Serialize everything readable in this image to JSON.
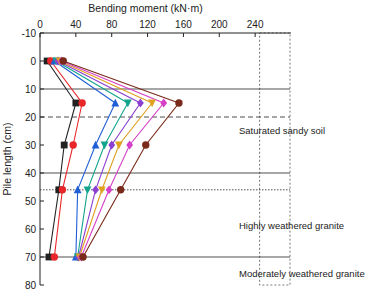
{
  "chart_data": {
    "type": "line",
    "orientation": "horizontal",
    "x_label": "Bending moment (kN·m)",
    "y_label": "Pile length (cm)",
    "xlim": [
      0,
      280
    ],
    "xticks": [
      0,
      40,
      80,
      120,
      160,
      200,
      240
    ],
    "ylim": [
      -10,
      80
    ],
    "yticks": [
      -10,
      0,
      10,
      20,
      30,
      40,
      50,
      60,
      70,
      80
    ],
    "y": [
      0,
      15,
      30,
      46,
      70
    ],
    "series": [
      {
        "color": "#222222",
        "marker": "square",
        "values": [
          8,
          40,
          27,
          21,
          10
        ]
      },
      {
        "color": "#e8262a",
        "marker": "circle",
        "values": [
          12,
          47,
          37,
          25,
          16
        ]
      },
      {
        "color": "#1f5fd6",
        "marker": "triangle",
        "values": [
          16,
          84,
          62,
          42,
          40
        ]
      },
      {
        "color": "#12a58c",
        "marker": "triangle-down",
        "values": [
          18,
          98,
          72,
          53,
          42
        ]
      },
      {
        "color": "#8b3fd0",
        "marker": "diamond",
        "values": [
          20,
          112,
          80,
          62,
          43
        ]
      },
      {
        "color": "#e0a020",
        "marker": "triangle-down",
        "values": [
          22,
          125,
          88,
          69,
          44
        ]
      },
      {
        "color": "#d640c8",
        "marker": "diamond",
        "values": [
          24,
          138,
          100,
          77,
          46
        ]
      },
      {
        "color": "#7a2a1a",
        "marker": "circle",
        "values": [
          26,
          155,
          118,
          90,
          48
        ]
      }
    ],
    "boundaries": [
      {
        "value": 10,
        "line_style": "solid"
      },
      {
        "value": 20,
        "line_style": "dashed"
      },
      {
        "value": 40,
        "line_style": "solid"
      },
      {
        "value": 46,
        "line_style": "dotted"
      },
      {
        "value": 70,
        "line_style": "solid"
      }
    ],
    "annotations": [
      {
        "text": "Saturated sandy soil",
        "x": 222,
        "y": 26
      },
      {
        "text": "Highly weathered granite",
        "x": 222,
        "y": 60
      },
      {
        "text": "Moderately weathered granite",
        "x": 222,
        "y": 77
      }
    ]
  }
}
